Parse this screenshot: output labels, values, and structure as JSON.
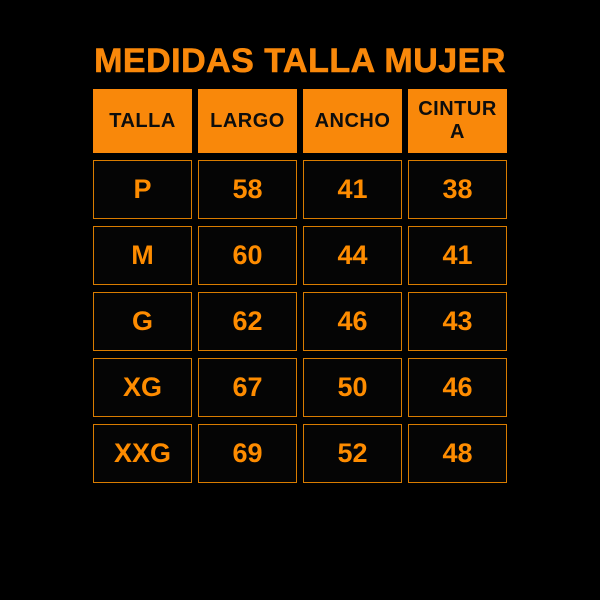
{
  "chart_data": {
    "type": "table",
    "title": "MEDIDAS TALLA MUJER",
    "columns": [
      "TALLA",
      "LARGO",
      "ANCHO",
      "CINTURA"
    ],
    "rows": [
      [
        "P",
        58,
        41,
        38
      ],
      [
        "M",
        60,
        44,
        41
      ],
      [
        "G",
        62,
        46,
        43
      ],
      [
        "XG",
        67,
        50,
        46
      ],
      [
        "XXG",
        69,
        52,
        48
      ]
    ],
    "layout": {
      "legend": "none",
      "grid": "separated-cells",
      "header_style": "filled-orange-black-text",
      "body_style": "black-cells-orange-text-orange-border"
    }
  },
  "colors": {
    "background": "#000000",
    "accent_orange": "#F9880A",
    "value_text": "#FE8C00",
    "cell_border": "#D97C00",
    "header_text": "#0D0D0D"
  }
}
